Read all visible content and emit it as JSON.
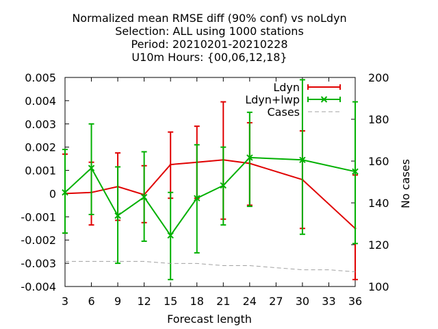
{
  "chart_data": {
    "type": "line",
    "title_lines": [
      "Normalized mean RMSE diff (90% conf) vs noLdyn",
      "Selection: ALL using  1000 stations",
      "Period: 20210201-20210228",
      "U10m   Hours: {00,06,12,18}"
    ],
    "xlabel": "Forecast length",
    "ylabel_right": "No cases",
    "x_ticks": [
      3,
      6,
      9,
      12,
      15,
      18,
      21,
      24,
      27,
      30,
      33,
      36
    ],
    "xlim": [
      3,
      36
    ],
    "y_ticks": [
      -0.004,
      -0.003,
      -0.002,
      -0.001,
      0,
      0.001,
      0.002,
      0.003,
      0.004,
      0.005
    ],
    "y_tick_labels": [
      "-0.004",
      "-0.003",
      "-0.002",
      "-0.001",
      "0",
      "0.001",
      "0.002",
      "0.003",
      "0.004",
      "0.005"
    ],
    "ylim": [
      -0.004,
      0.005
    ],
    "y2_ticks": [
      100,
      120,
      140,
      160,
      180,
      200
    ],
    "y2lim": [
      100,
      200
    ],
    "legend_position": "top-right",
    "grid": false,
    "series": [
      {
        "name": "Ldyn",
        "color": "#e00000",
        "style": "errorbars",
        "x": [
          3,
          6,
          9,
          12,
          15,
          18,
          21,
          24,
          30,
          36
        ],
        "y": [
          0.0,
          5e-05,
          0.0003,
          -5e-05,
          0.00125,
          0.00135,
          0.00145,
          0.0013,
          0.0006,
          -0.0015
        ],
        "low": [
          -0.0017,
          -0.00135,
          -0.00115,
          -0.00125,
          -0.0002,
          -0.0002,
          -0.0011,
          -0.0005,
          -0.0015,
          -0.0037
        ],
        "high": [
          0.0017,
          0.00135,
          0.00175,
          0.0012,
          0.00265,
          0.0029,
          0.00395,
          0.00305,
          0.0027,
          0.0008
        ]
      },
      {
        "name": "Ldyn+lwp",
        "color": "#00b000",
        "style": "errorbars-x",
        "x": [
          3,
          6,
          9,
          12,
          15,
          18,
          21,
          24,
          30,
          36
        ],
        "y": [
          5e-05,
          0.0011,
          -0.00095,
          -0.00015,
          -0.0018,
          -0.0002,
          0.00035,
          0.00155,
          0.00145,
          0.00095
        ],
        "low": [
          -0.0017,
          -0.0009,
          -0.003,
          -0.00205,
          -0.0037,
          -0.00255,
          -0.00135,
          -0.00055,
          -0.00175,
          -0.00215
        ],
        "high": [
          0.0019,
          0.003,
          0.00115,
          0.0018,
          5e-05,
          0.0021,
          0.002,
          0.0035,
          0.0049,
          0.00395
        ]
      },
      {
        "name": "Cases",
        "color": "#a0a0a0",
        "style": "dashed",
        "axis": "y2",
        "x": [
          3,
          6,
          9,
          12,
          15,
          18,
          21,
          24,
          27,
          30,
          33,
          36
        ],
        "y": [
          112,
          112,
          112,
          112,
          111,
          111,
          110,
          110,
          109,
          108,
          108,
          107
        ]
      }
    ]
  }
}
